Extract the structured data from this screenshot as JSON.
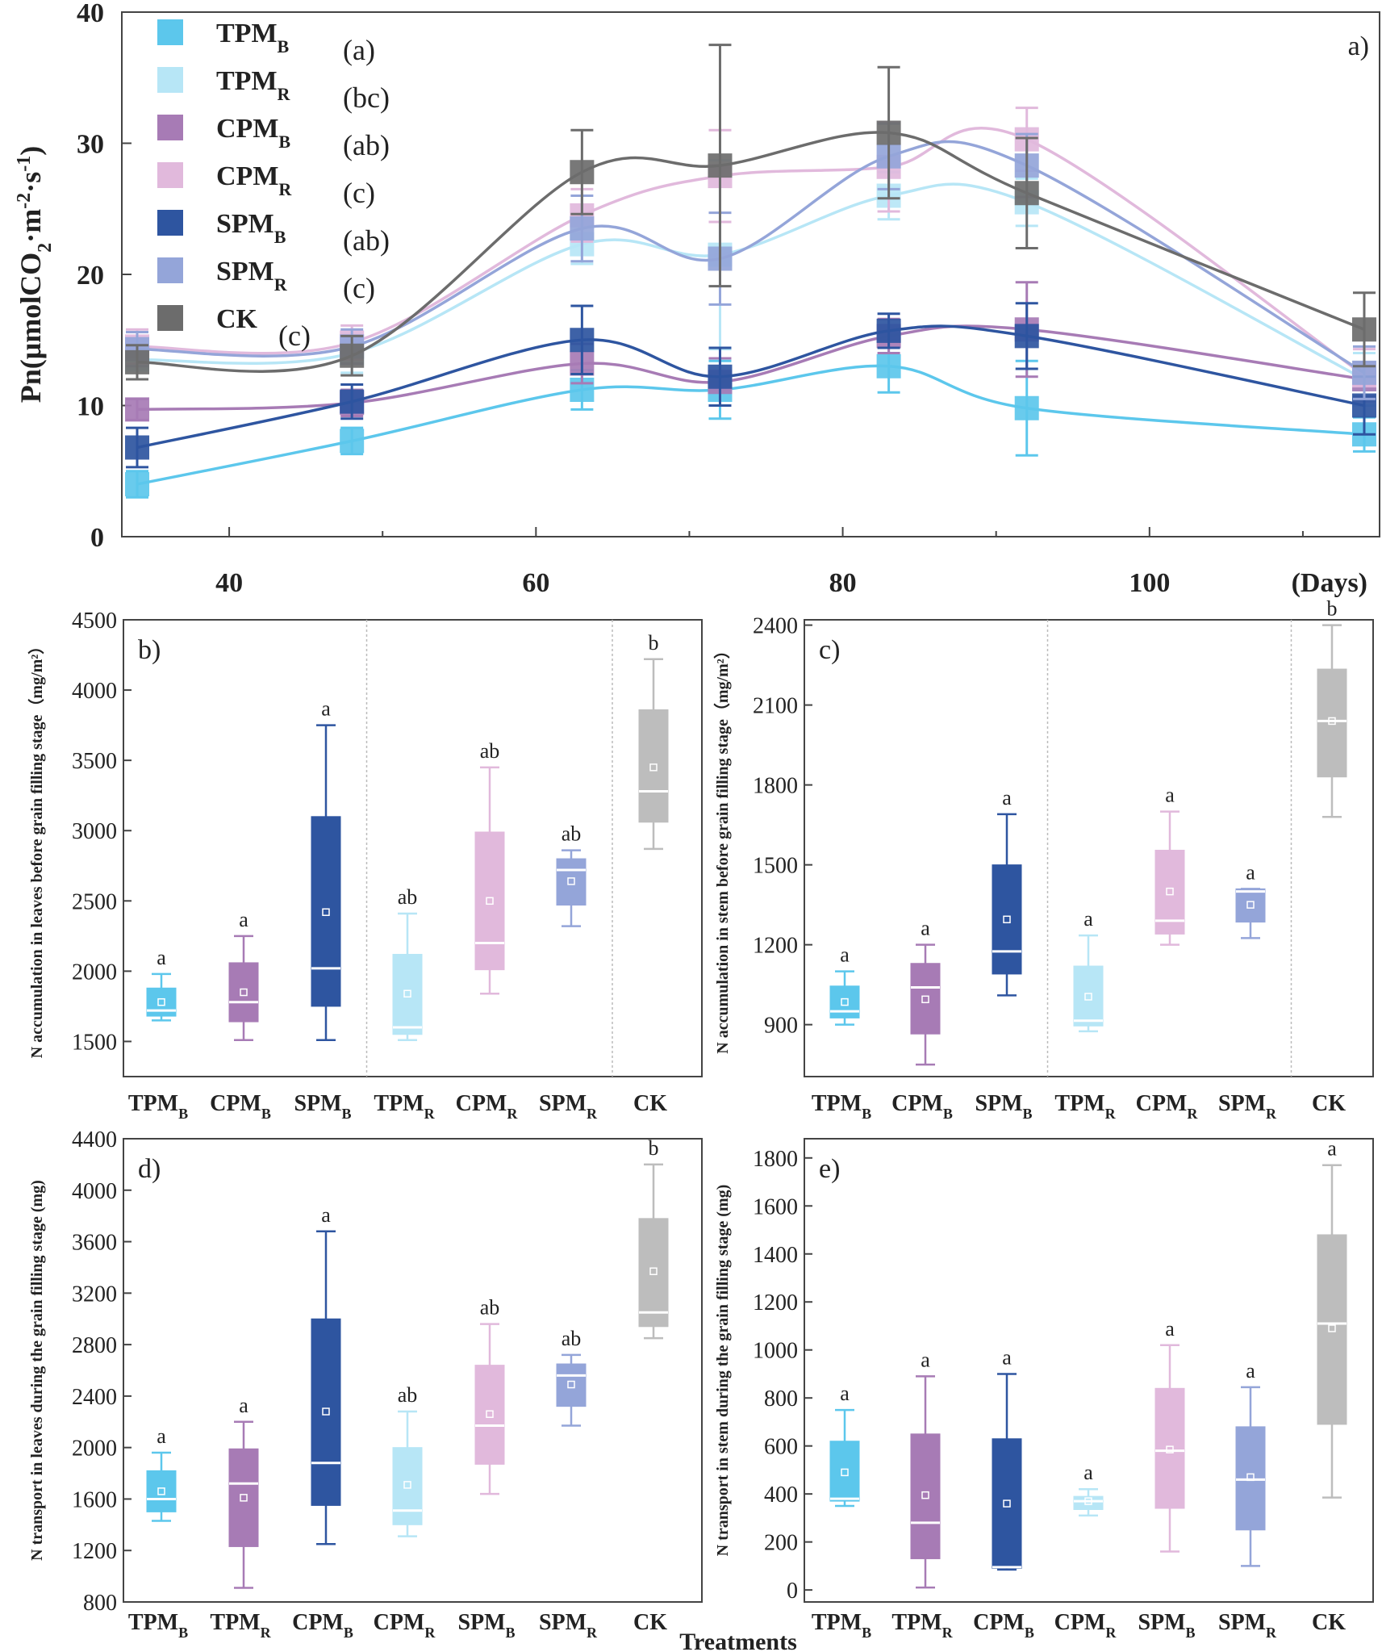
{
  "colors": {
    "TPM_B": "#5cc7ec",
    "TPM_R": "#b7e6f6",
    "CPM_B": "#a77bb5",
    "CPM_R": "#e1b9dc",
    "SPM_B": "#2e55a0",
    "SPM_R": "#94a5d9",
    "CK": "#6c6c6c",
    "CK_box": "#bdbdbd"
  },
  "chart_data": [
    {
      "id": "a",
      "type": "line",
      "panel_label": "a)",
      "ylabel": "Pn(μmolCO₂·m⁻²·s⁻¹)",
      "xlabel": "(Days)",
      "xlim": [
        33,
        115
      ],
      "ylim": [
        0,
        40
      ],
      "xticks": [
        40,
        60,
        80,
        100
      ],
      "yticks": [
        0,
        10,
        20,
        30,
        40
      ],
      "x": [
        34,
        48,
        63,
        72,
        83,
        92,
        114
      ],
      "series": [
        {
          "key": "TPM_B",
          "name": "TPM",
          "sub": "B",
          "sig": "(a)",
          "values": [
            4,
            7.3,
            11.2,
            11.2,
            13,
            9.8,
            7.8
          ],
          "err": [
            1,
            1,
            1.5,
            2.2,
            2,
            3.6,
            1.3
          ]
        },
        {
          "key": "TPM_R",
          "name": "TPM",
          "sub": "R",
          "sig": "(bc)",
          "values": [
            13.5,
            14,
            22.3,
            21.5,
            26,
            25.5,
            12
          ],
          "err": [
            1.5,
            1.5,
            1.5,
            7.2,
            1.8,
            1.8,
            2
          ]
        },
        {
          "key": "CPM_B",
          "name": "CPM",
          "sub": "B",
          "sig": "(ab)",
          "values": [
            9.7,
            10.2,
            13.2,
            11.8,
            15.3,
            15.8,
            12
          ],
          "err": [
            0.8,
            1,
            1.5,
            1.8,
            1.3,
            3.6,
            1.3
          ]
        },
        {
          "key": "CPM_R",
          "name": "CPM",
          "sub": "R",
          "sig": "(c)",
          "values": [
            14.5,
            14.8,
            24.5,
            27.5,
            28.2,
            30.3,
            12.3
          ],
          "err": [
            1.3,
            1.3,
            2,
            3.5,
            3.4,
            2.4,
            2
          ]
        },
        {
          "key": "SPM_B",
          "name": "SPM",
          "sub": "B",
          "sig": "(ab)",
          "values": [
            6.8,
            10.3,
            15,
            12.2,
            15.7,
            15.3,
            10
          ],
          "err": [
            1.5,
            1.3,
            2.6,
            2.2,
            1.3,
            2.5,
            2.2
          ]
        },
        {
          "key": "SPM_R",
          "name": "SPM",
          "sub": "R",
          "sig": "(c)",
          "values": [
            14.3,
            14.5,
            23.5,
            21.2,
            29,
            28.3,
            12.5
          ],
          "err": [
            1.3,
            1.3,
            2.5,
            3.5,
            2.5,
            2.4,
            2
          ]
        },
        {
          "key": "CK",
          "name": "CK",
          "sub": "",
          "sig": "(c)",
          "values": [
            13.3,
            13.8,
            27.8,
            28.3,
            30.8,
            26.2,
            15.8
          ],
          "err": [
            1.3,
            1.5,
            3.2,
            9.2,
            5,
            4.2,
            2.8
          ]
        }
      ]
    },
    {
      "id": "b",
      "type": "box",
      "panel_label": "b)",
      "ylabel": "N accumulation in leaves before grain filling stage（mg/m²）",
      "ylim": [
        1250,
        4500
      ],
      "yticks": [
        1500,
        2000,
        2500,
        3000,
        3500,
        4000,
        4500
      ],
      "separators_after": [
        3,
        6
      ],
      "groups": [
        {
          "key": "TPM_B",
          "name": "TPM",
          "sub": "B",
          "min": 1650,
          "q1": 1680,
          "median": 1720,
          "q3": 1880,
          "max": 1980,
          "mean": 1780,
          "sig": "a"
        },
        {
          "key": "CPM_B",
          "name": "CPM",
          "sub": "B",
          "min": 1510,
          "q1": 1640,
          "median": 1780,
          "q3": 2060,
          "max": 2250,
          "mean": 1850,
          "sig": "a"
        },
        {
          "key": "SPM_B",
          "name": "SPM",
          "sub": "B",
          "min": 1510,
          "q1": 1750,
          "median": 2020,
          "q3": 3100,
          "max": 3750,
          "mean": 2420,
          "sig": "a"
        },
        {
          "key": "TPM_R",
          "name": "TPM",
          "sub": "R",
          "min": 1510,
          "q1": 1550,
          "median": 1600,
          "q3": 2120,
          "max": 2410,
          "mean": 1840,
          "sig": "ab"
        },
        {
          "key": "CPM_R",
          "name": "CPM",
          "sub": "R",
          "min": 1840,
          "q1": 2010,
          "median": 2200,
          "q3": 2990,
          "max": 3450,
          "mean": 2500,
          "sig": "ab"
        },
        {
          "key": "SPM_R",
          "name": "SPM",
          "sub": "R",
          "min": 2320,
          "q1": 2470,
          "median": 2720,
          "q3": 2800,
          "max": 2860,
          "mean": 2640,
          "sig": "ab"
        },
        {
          "key": "CK_box",
          "name": "CK",
          "sub": "",
          "min": 2870,
          "q1": 3060,
          "median": 3280,
          "q3": 3860,
          "max": 4220,
          "mean": 3450,
          "sig": "b"
        }
      ]
    },
    {
      "id": "c",
      "type": "box",
      "panel_label": "c)",
      "ylabel": "N accumulation in stem before grain filling stage（mg/m²）",
      "ylim": [
        705,
        2420
      ],
      "yticks": [
        900,
        1200,
        1500,
        1800,
        2100,
        2400
      ],
      "separators_after": [
        3,
        6
      ],
      "groups": [
        {
          "key": "TPM_B",
          "name": "TPM",
          "sub": "B",
          "min": 900,
          "q1": 925,
          "median": 950,
          "q3": 1045,
          "max": 1100,
          "mean": 985,
          "sig": "a"
        },
        {
          "key": "CPM_B",
          "name": "CPM",
          "sub": "B",
          "min": 750,
          "q1": 865,
          "median": 1040,
          "q3": 1130,
          "max": 1200,
          "mean": 995,
          "sig": "a"
        },
        {
          "key": "SPM_B",
          "name": "SPM",
          "sub": "B",
          "min": 1010,
          "q1": 1090,
          "median": 1175,
          "q3": 1500,
          "max": 1690,
          "mean": 1295,
          "sig": "a"
        },
        {
          "key": "TPM_R",
          "name": "TPM",
          "sub": "R",
          "min": 875,
          "q1": 895,
          "median": 915,
          "q3": 1120,
          "max": 1235,
          "mean": 1005,
          "sig": "a"
        },
        {
          "key": "CPM_R",
          "name": "CPM",
          "sub": "R",
          "min": 1200,
          "q1": 1240,
          "median": 1290,
          "q3": 1555,
          "max": 1700,
          "mean": 1400,
          "sig": "a"
        },
        {
          "key": "SPM_R",
          "name": "SPM",
          "sub": "R",
          "min": 1225,
          "q1": 1285,
          "median": 1400,
          "q3": 1410,
          "max": 1410,
          "mean": 1350,
          "sig": "a"
        },
        {
          "key": "CK_box",
          "name": "CK",
          "sub": "",
          "min": 1680,
          "q1": 1830,
          "median": 2040,
          "q3": 2235,
          "max": 2400,
          "mean": 2040,
          "sig": "b"
        }
      ]
    },
    {
      "id": "d",
      "type": "box",
      "panel_label": "d)",
      "ylabel": "N transport in leaves during the grain filling stage (mg)",
      "ylim": [
        800,
        4400
      ],
      "yticks": [
        800,
        1200,
        1600,
        2000,
        2400,
        2800,
        3200,
        3600,
        4000,
        4400
      ],
      "separators_after": [],
      "groups": [
        {
          "key": "TPM_B",
          "name": "TPM",
          "sub": "B",
          "min": 1430,
          "q1": 1500,
          "median": 1600,
          "q3": 1820,
          "max": 1960,
          "mean": 1660,
          "sig": "a"
        },
        {
          "key": "CPM_B",
          "name": "TPM",
          "sub": "R",
          "min": 910,
          "q1": 1230,
          "median": 1720,
          "q3": 1990,
          "max": 2200,
          "mean": 1610,
          "sig": "a"
        },
        {
          "key": "SPM_B",
          "name": "CPM",
          "sub": "B",
          "min": 1250,
          "q1": 1550,
          "median": 1880,
          "q3": 3000,
          "max": 3680,
          "mean": 2280,
          "sig": "a"
        },
        {
          "key": "TPM_R",
          "name": "CPM",
          "sub": "R",
          "min": 1310,
          "q1": 1400,
          "median": 1510,
          "q3": 2000,
          "max": 2280,
          "mean": 1710,
          "sig": "ab"
        },
        {
          "key": "CPM_R",
          "name": "SPM",
          "sub": "B",
          "min": 1640,
          "q1": 1870,
          "median": 2170,
          "q3": 2640,
          "max": 2960,
          "mean": 2260,
          "sig": "ab"
        },
        {
          "key": "SPM_R",
          "name": "SPM",
          "sub": "R",
          "min": 2170,
          "q1": 2320,
          "median": 2560,
          "q3": 2650,
          "max": 2720,
          "mean": 2490,
          "sig": "ab"
        },
        {
          "key": "CK_box",
          "name": "CK",
          "sub": "",
          "min": 2850,
          "q1": 2940,
          "median": 3050,
          "q3": 3780,
          "max": 4200,
          "mean": 3370,
          "sig": "b"
        }
      ]
    },
    {
      "id": "e",
      "type": "box",
      "panel_label": "e)",
      "ylabel": "N transport in stem during the grain filling  stage (mg)",
      "xlabel": "Treatments",
      "ylim": [
        -50,
        1880
      ],
      "yticks": [
        0,
        200,
        400,
        600,
        800,
        1000,
        1200,
        1400,
        1600,
        1800
      ],
      "separators_after": [],
      "groups": [
        {
          "key": "TPM_B",
          "name": "TPM",
          "sub": "B",
          "min": 350,
          "q1": 370,
          "median": 380,
          "q3": 620,
          "max": 750,
          "mean": 490,
          "sig": "a"
        },
        {
          "key": "CPM_B",
          "name": "TPM",
          "sub": "R",
          "min": 10,
          "q1": 130,
          "median": 280,
          "q3": 650,
          "max": 890,
          "mean": 395,
          "sig": "a"
        },
        {
          "key": "SPM_B",
          "name": "CPM",
          "sub": "B",
          "min": 85,
          "q1": 90,
          "median": 95,
          "q3": 630,
          "max": 900,
          "mean": 360,
          "sig": "a"
        },
        {
          "key": "TPM_R",
          "name": "CPM",
          "sub": "R",
          "min": 310,
          "q1": 335,
          "median": 370,
          "q3": 390,
          "max": 420,
          "mean": 370,
          "sig": "a"
        },
        {
          "key": "CPM_R",
          "name": "SPM",
          "sub": "B",
          "min": 160,
          "q1": 340,
          "median": 580,
          "q3": 840,
          "max": 1020,
          "mean": 585,
          "sig": "a"
        },
        {
          "key": "SPM_R",
          "name": "SPM",
          "sub": "R",
          "min": 100,
          "q1": 250,
          "median": 460,
          "q3": 680,
          "max": 845,
          "mean": 470,
          "sig": "a"
        },
        {
          "key": "CK_box",
          "name": "CK",
          "sub": "",
          "min": 385,
          "q1": 690,
          "median": 1110,
          "q3": 1480,
          "max": 1770,
          "mean": 1090,
          "sig": "a"
        }
      ]
    }
  ]
}
